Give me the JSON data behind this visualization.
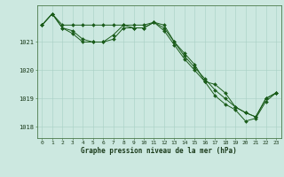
{
  "xlabel": "Graphe pression niveau de la mer (hPa)",
  "xlim": [
    -0.5,
    23.5
  ],
  "ylim": [
    1017.6,
    1022.3
  ],
  "yticks": [
    1018,
    1019,
    1020,
    1021
  ],
  "xticks": [
    0,
    1,
    2,
    3,
    4,
    5,
    6,
    7,
    8,
    9,
    10,
    11,
    12,
    13,
    14,
    15,
    16,
    17,
    18,
    19,
    20,
    21,
    22,
    23
  ],
  "background_color": "#cce8e0",
  "line_color": "#1a5c1a",
  "grid_color": "#a8cfc4",
  "series": [
    {
      "x": [
        0,
        1,
        2,
        3,
        4,
        5,
        6,
        7,
        8,
        9,
        10,
        11,
        12,
        13,
        14,
        15,
        16,
        17,
        18,
        19,
        20,
        21,
        22,
        23
      ],
      "y": [
        1021.6,
        1022.0,
        1021.6,
        1021.6,
        1021.6,
        1021.6,
        1021.6,
        1021.6,
        1021.6,
        1021.6,
        1021.6,
        1021.7,
        1021.6,
        1021.0,
        1020.6,
        1020.2,
        1019.6,
        1019.5,
        1019.2,
        1018.7,
        1018.5,
        1018.35,
        1019.0,
        1019.2
      ]
    },
    {
      "x": [
        0,
        1,
        2,
        3,
        4,
        5,
        6,
        7,
        8,
        9,
        10,
        11,
        12,
        13,
        14,
        15,
        16,
        17,
        18,
        19,
        20,
        21,
        22,
        23
      ],
      "y": [
        1021.6,
        1022.0,
        1021.5,
        1021.4,
        1021.1,
        1021.0,
        1021.0,
        1021.1,
        1021.5,
        1021.5,
        1021.5,
        1021.7,
        1021.5,
        1021.0,
        1020.5,
        1020.1,
        1019.7,
        1019.3,
        1019.0,
        1018.7,
        1018.5,
        1018.35,
        1019.0,
        1019.2
      ]
    },
    {
      "x": [
        0,
        1,
        2,
        3,
        4,
        5,
        6,
        7,
        8,
        9,
        10,
        11,
        12,
        13,
        14,
        15,
        16,
        17,
        18,
        19,
        20,
        21,
        22,
        23
      ],
      "y": [
        1021.6,
        1022.0,
        1021.5,
        1021.3,
        1021.0,
        1021.0,
        1021.0,
        1021.25,
        1021.6,
        1021.5,
        1021.5,
        1021.7,
        1021.4,
        1020.9,
        1020.4,
        1020.0,
        1019.6,
        1019.1,
        1018.8,
        1018.6,
        1018.2,
        1018.3,
        1018.9,
        1019.2
      ]
    }
  ]
}
